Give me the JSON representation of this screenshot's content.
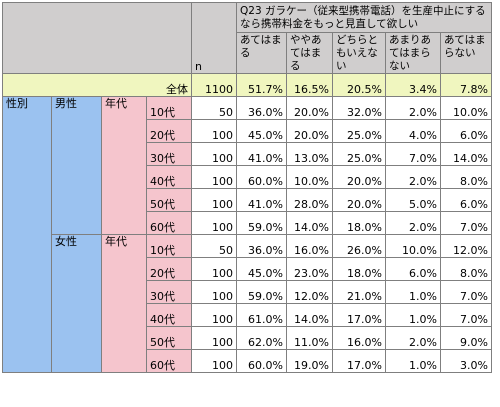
{
  "header": {
    "question": "Q23 ガラケー（従来型携帯電話）を生産中止にするなら携帯料金をもっと見直して欲しい",
    "n_label": "n",
    "options": [
      "あてはまる",
      "ややあてはまる",
      "どちらともいえない",
      "あまりあてはまらない",
      "あてはまらない"
    ]
  },
  "total": {
    "label": "全体",
    "n": "1100",
    "values": [
      "51.7%",
      "16.5%",
      "20.5%",
      "3.4%",
      "7.8%"
    ]
  },
  "segment_label": "性別",
  "groups": [
    {
      "gender": "男性",
      "age_header": "年代",
      "rows": [
        {
          "age": "10代",
          "n": "50",
          "values": [
            "36.0%",
            "20.0%",
            "32.0%",
            "2.0%",
            "10.0%"
          ]
        },
        {
          "age": "20代",
          "n": "100",
          "values": [
            "45.0%",
            "20.0%",
            "25.0%",
            "4.0%",
            "6.0%"
          ]
        },
        {
          "age": "30代",
          "n": "100",
          "values": [
            "41.0%",
            "13.0%",
            "25.0%",
            "7.0%",
            "14.0%"
          ]
        },
        {
          "age": "40代",
          "n": "100",
          "values": [
            "60.0%",
            "10.0%",
            "20.0%",
            "2.0%",
            "8.0%"
          ]
        },
        {
          "age": "50代",
          "n": "100",
          "values": [
            "41.0%",
            "28.0%",
            "20.0%",
            "5.0%",
            "6.0%"
          ]
        },
        {
          "age": "60代",
          "n": "100",
          "values": [
            "59.0%",
            "14.0%",
            "18.0%",
            "2.0%",
            "7.0%"
          ]
        }
      ]
    },
    {
      "gender": "女性",
      "age_header": "年代",
      "rows": [
        {
          "age": "10代",
          "n": "50",
          "values": [
            "36.0%",
            "16.0%",
            "26.0%",
            "10.0%",
            "12.0%"
          ]
        },
        {
          "age": "20代",
          "n": "100",
          "values": [
            "45.0%",
            "23.0%",
            "18.0%",
            "6.0%",
            "8.0%"
          ]
        },
        {
          "age": "30代",
          "n": "100",
          "values": [
            "59.0%",
            "12.0%",
            "21.0%",
            "1.0%",
            "7.0%"
          ]
        },
        {
          "age": "40代",
          "n": "100",
          "values": [
            "61.0%",
            "14.0%",
            "17.0%",
            "1.0%",
            "7.0%"
          ]
        },
        {
          "age": "50代",
          "n": "100",
          "values": [
            "62.0%",
            "11.0%",
            "16.0%",
            "2.0%",
            "9.0%"
          ]
        },
        {
          "age": "60代",
          "n": "100",
          "values": [
            "60.0%",
            "19.0%",
            "17.0%",
            "1.0%",
            "3.0%"
          ]
        }
      ]
    }
  ]
}
